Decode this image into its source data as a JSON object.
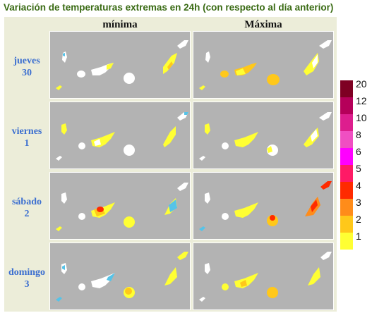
{
  "title": "Variación de temperaturas extremas en 24h (con respecto al día anterior)",
  "columns": [
    "mínima",
    "Máxima"
  ],
  "rows": [
    {
      "day": "jueves",
      "num": "30"
    },
    {
      "day": "viernes",
      "num": "1"
    },
    {
      "day": "sábado",
      "num": "2"
    },
    {
      "day": "domingo",
      "num": "3"
    }
  ],
  "legend": {
    "labels": [
      "20",
      "12",
      "10",
      "8",
      "6",
      "5",
      "4",
      "3",
      "2",
      "1"
    ],
    "colors": [
      "#7e0023",
      "#b5005a",
      "#dd1e8e",
      "#f04fc2",
      "#ff00ff",
      "#ff1a66",
      "#ff2a00",
      "#ff8c1a",
      "#ffc81a",
      "#ffff33"
    ]
  },
  "colors": {
    "panel_bg": "#b3b3b3",
    "title": "#3a6b14",
    "row_label": "#3c6fd0",
    "island_white": "#ffffff",
    "cool": "#56c3e8"
  }
}
